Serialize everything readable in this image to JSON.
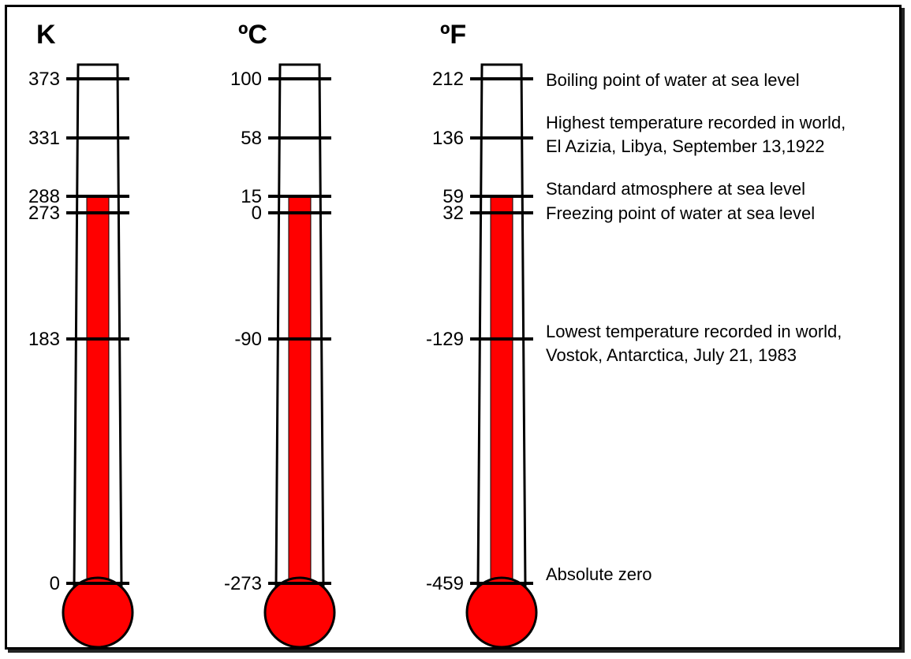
{
  "colors": {
    "mercury": "#ff0000",
    "outline": "#000000",
    "background": "#ffffff"
  },
  "mercury_level_c": 15,
  "scales": [
    {
      "id": "kelvin",
      "title": "K",
      "ticks": [
        "373",
        "331",
        "288",
        "273",
        "183",
        "0"
      ]
    },
    {
      "id": "celsius",
      "title": "ºC",
      "ticks": [
        "100",
        "58",
        "15",
        "0",
        "-90",
        "-273"
      ]
    },
    {
      "id": "fahrenheit",
      "title": "ºF",
      "ticks": [
        "212",
        "136",
        "59",
        "32",
        "-129",
        "-459"
      ]
    }
  ],
  "reference_points": [
    {
      "celsius": 100,
      "lines": [
        "Boiling point of water at sea level"
      ]
    },
    {
      "celsius": 58,
      "lines": [
        "Highest temperature recorded in world,",
        "El Azizia, Libya, September 13,1922"
      ]
    },
    {
      "celsius": 15,
      "lines": [
        "Standard atmosphere at sea level"
      ]
    },
    {
      "celsius": 0,
      "lines": [
        "Freezing point of water at sea level"
      ]
    },
    {
      "celsius": -90,
      "lines": [
        "Lowest temperature recorded in world,",
        "Vostok, Antarctica, July 21, 1983"
      ]
    },
    {
      "celsius": -273,
      "lines": [
        "Absolute zero"
      ]
    }
  ]
}
